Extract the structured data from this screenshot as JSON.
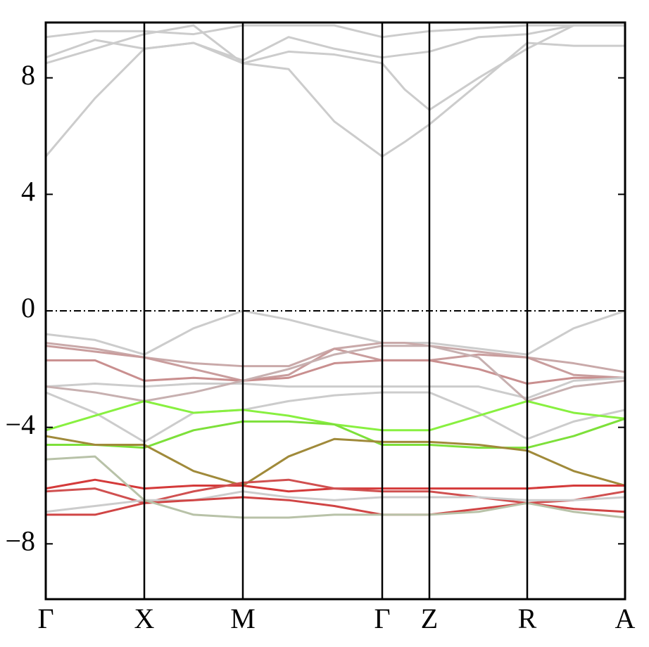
{
  "chart_data": {
    "type": "line",
    "x": [
      0,
      0.7,
      1.4,
      2.1,
      2.8,
      3.45,
      4.1,
      4.78,
      5.1,
      5.45,
      6.15,
      6.84,
      7.5,
      8.23
    ],
    "xlim": [
      0,
      8.23
    ],
    "xticks": [
      {
        "value": 0,
        "label": "Γ"
      },
      {
        "value": 1.4,
        "label": "X"
      },
      {
        "value": 2.8,
        "label": "M"
      },
      {
        "value": 4.78,
        "label": "Γ"
      },
      {
        "value": 5.45,
        "label": "Z"
      },
      {
        "value": 6.84,
        "label": "R"
      },
      {
        "value": 8.23,
        "label": "A"
      }
    ],
    "ylim": [
      -9.9,
      9.9
    ],
    "yticks": [
      {
        "value": -8,
        "label": "−8"
      },
      {
        "value": -4,
        "label": "−4"
      },
      0,
      4,
      8
    ],
    "hline": 0,
    "series": [
      {
        "color": "#cccccc",
        "values": [
          5.3,
          7.3,
          9.0,
          9.2,
          8.5,
          8.3,
          6.5,
          5.3,
          5.8,
          6.4,
          7.8,
          9.2,
          9.1,
          9.1
        ]
      },
      {
        "color": "#cccccc",
        "values": [
          8.5,
          9.0,
          9.5,
          9.8,
          8.5,
          8.9,
          8.8,
          8.5,
          7.6,
          6.9,
          8.0,
          9.0,
          9.8,
          9.8
        ]
      },
      {
        "color": "#cccccc",
        "values": [
          8.7,
          9.3,
          9.0,
          9.2,
          8.6,
          9.4,
          9.0,
          8.7,
          8.8,
          8.9,
          9.4,
          9.5,
          9.8,
          9.8
        ]
      },
      {
        "color": "#cccccc",
        "values": [
          9.4,
          9.6,
          9.6,
          9.5,
          9.8,
          9.8,
          9.8,
          9.4,
          9.5,
          9.6,
          9.7,
          9.8,
          9.8,
          9.8
        ]
      },
      {
        "color": "#cccccc",
        "values": [
          -0.8,
          -1.0,
          -1.5,
          -0.6,
          0.0,
          -0.3,
          -0.7,
          -1.1,
          -1.1,
          -1.1,
          -1.3,
          -1.5,
          -0.6,
          0.0
        ]
      },
      {
        "color": "#c9a9a9",
        "values": [
          -1.1,
          -1.3,
          -1.6,
          -1.8,
          -1.9,
          -1.9,
          -1.3,
          -1.1,
          -1.1,
          -1.2,
          -1.4,
          -1.6,
          -1.8,
          -2.1
        ]
      },
      {
        "color": "#c99d9d",
        "values": [
          -1.2,
          -1.4,
          -1.6,
          -2.0,
          -2.4,
          -2.2,
          -1.3,
          -1.7,
          -1.7,
          -1.7,
          -1.5,
          -1.6,
          -2.2,
          -2.3
        ]
      },
      {
        "color": "#c98f8f",
        "values": [
          -1.7,
          -1.7,
          -2.4,
          -2.3,
          -2.4,
          -2.3,
          -1.8,
          -1.7,
          -1.7,
          -1.7,
          -2.0,
          -2.5,
          -2.3,
          -2.3
        ]
      },
      {
        "color": "#cccccc",
        "values": [
          -2.6,
          -2.5,
          -2.6,
          -2.5,
          -2.5,
          -2.6,
          -2.6,
          -2.6,
          -2.6,
          -2.6,
          -2.6,
          -3.0,
          -2.4,
          -2.3
        ]
      },
      {
        "color": "#c7b0b0",
        "values": [
          -2.6,
          -2.8,
          -3.1,
          -2.8,
          -2.4,
          -2.0,
          -1.5,
          -1.2,
          -1.2,
          -1.2,
          -1.6,
          -3.1,
          -2.6,
          -2.4
        ]
      },
      {
        "color": "#cccccc",
        "values": [
          -2.8,
          -3.5,
          -4.5,
          -3.5,
          -3.4,
          -3.1,
          -2.9,
          -2.8,
          -2.8,
          -2.8,
          -3.5,
          -4.4,
          -3.8,
          -3.4
        ]
      },
      {
        "color": "#88f040",
        "values": [
          -4.1,
          -3.6,
          -3.1,
          -3.5,
          -3.4,
          -3.6,
          -3.9,
          -4.1,
          -4.1,
          -4.1,
          -3.6,
          -3.1,
          -3.5,
          -3.7
        ]
      },
      {
        "color": "#7de03a",
        "values": [
          -4.6,
          -4.6,
          -4.7,
          -4.1,
          -3.8,
          -3.8,
          -3.9,
          -4.6,
          -4.6,
          -4.6,
          -4.7,
          -4.7,
          -4.3,
          -3.7
        ]
      },
      {
        "color": "#a08a3a",
        "values": [
          -4.3,
          -4.6,
          -4.6,
          -5.5,
          -6.0,
          -5.0,
          -4.4,
          -4.5,
          -4.5,
          -4.5,
          -4.6,
          -4.8,
          -5.5,
          -6.0
        ]
      },
      {
        "color": "#d43a3a",
        "values": [
          -6.1,
          -5.8,
          -6.1,
          -6.0,
          -6.0,
          -6.2,
          -6.1,
          -6.1,
          -6.1,
          -6.1,
          -6.1,
          -6.1,
          -6.0,
          -6.0
        ]
      },
      {
        "color": "#d05050",
        "values": [
          -6.2,
          -6.1,
          -6.6,
          -6.2,
          -5.9,
          -5.8,
          -6.1,
          -6.2,
          -6.2,
          -6.2,
          -6.4,
          -6.6,
          -6.5,
          -6.2
        ]
      },
      {
        "color": "#cccccc",
        "values": [
          -6.9,
          -6.7,
          -6.5,
          -6.5,
          -6.2,
          -6.4,
          -6.5,
          -6.4,
          -6.4,
          -6.4,
          -6.4,
          -6.5,
          -6.5,
          -6.4
        ]
      },
      {
        "color": "#d04545",
        "values": [
          -7.0,
          -7.0,
          -6.6,
          -6.5,
          -6.4,
          -6.5,
          -6.7,
          -7.0,
          -7.0,
          -7.0,
          -6.8,
          -6.6,
          -6.8,
          -6.9
        ]
      },
      {
        "color": "#b8c2a8",
        "values": [
          -5.1,
          -5.0,
          -6.5,
          -7.0,
          -7.1,
          -7.1,
          -7.0,
          -7.0,
          -7.0,
          -7.0,
          -6.9,
          -6.6,
          -6.9,
          -7.1
        ]
      }
    ]
  }
}
